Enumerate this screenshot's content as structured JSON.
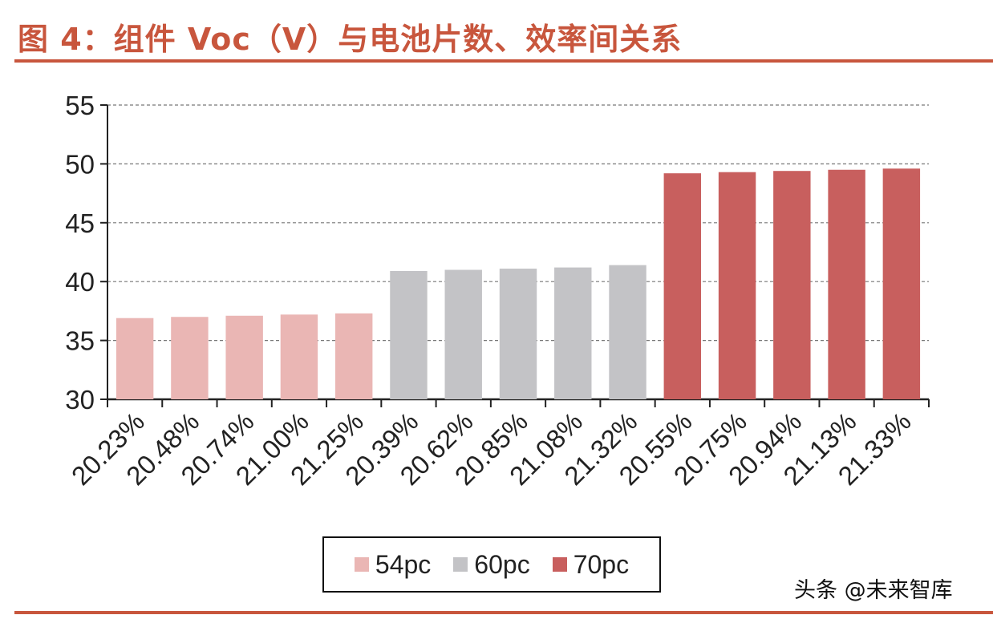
{
  "title": "图 4：组件 Voc（V）与电池片数、效率间关系",
  "watermark": "头条 @未来智库",
  "colors": {
    "accent": "#c8563d",
    "54pc": "#eab6b4",
    "60pc": "#c3c3c6",
    "70pc": "#c85f5e"
  },
  "chart_data": {
    "type": "bar",
    "title": "图 4：组件 Voc（V）与电池片数、效率间关系",
    "xlabel": "",
    "ylabel": "",
    "ylim": [
      30,
      55
    ],
    "yticks": [
      30,
      35,
      40,
      45,
      50,
      55
    ],
    "grid": true,
    "legend_position": "bottom",
    "categories": [
      "20.23%",
      "20.48%",
      "20.74%",
      "21.00%",
      "21.25%",
      "20.39%",
      "20.62%",
      "20.85%",
      "21.08%",
      "21.32%",
      "20.55%",
      "20.75%",
      "20.94%",
      "21.13%",
      "21.33%"
    ],
    "groups": [
      "54pc",
      "54pc",
      "54pc",
      "54pc",
      "54pc",
      "60pc",
      "60pc",
      "60pc",
      "60pc",
      "60pc",
      "70pc",
      "70pc",
      "70pc",
      "70pc",
      "70pc"
    ],
    "values": [
      36.9,
      37.0,
      37.1,
      37.2,
      37.3,
      40.9,
      41.0,
      41.1,
      41.2,
      41.4,
      49.2,
      49.3,
      49.4,
      49.5,
      49.6
    ],
    "series": [
      {
        "name": "54pc",
        "color": "#eab6b4"
      },
      {
        "name": "60pc",
        "color": "#c3c3c6"
      },
      {
        "name": "70pc",
        "color": "#c85f5e"
      }
    ]
  }
}
